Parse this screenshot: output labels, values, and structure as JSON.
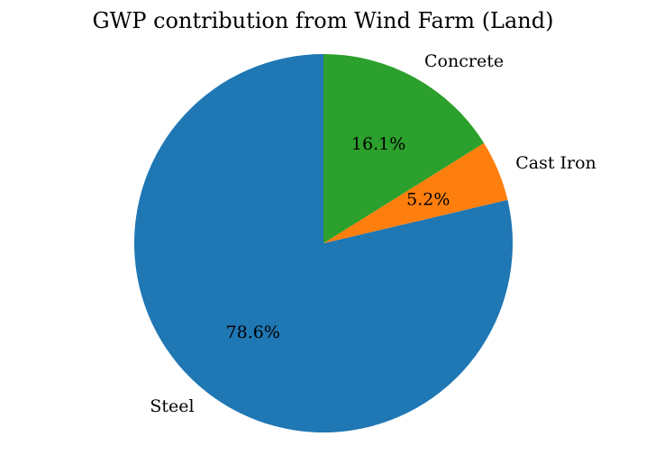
{
  "chart_data": {
    "type": "pie",
    "title": "GWP contribution from Wind Farm (Land)",
    "start_angle_deg": 90,
    "direction": "counterclockwise",
    "slices": [
      {
        "label": "Steel",
        "value": 78.6,
        "pct_label": "78.6%",
        "color": "#1f77b4"
      },
      {
        "label": "Cast Iron",
        "value": 5.2,
        "pct_label": "5.2%",
        "color": "#ff7f0e"
      },
      {
        "label": "Concrete",
        "value": 16.1,
        "pct_label": "16.1%",
        "color": "#2ca02c"
      }
    ]
  }
}
